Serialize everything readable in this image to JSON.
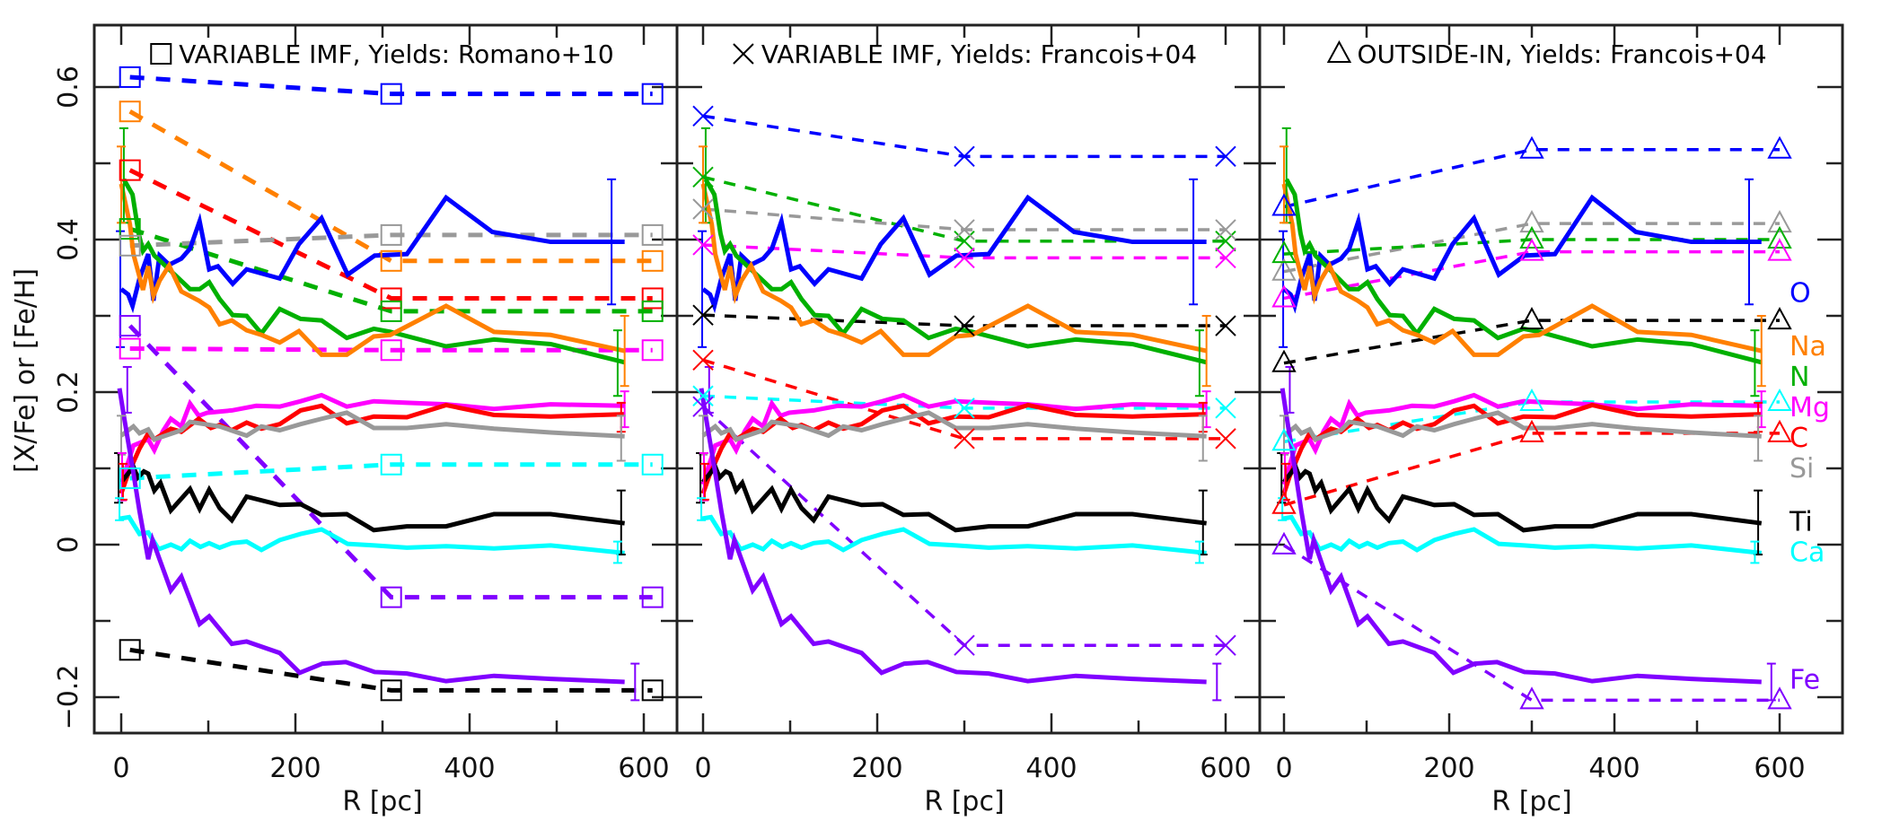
{
  "chart_data": {
    "type": "line",
    "ylabel": "[X/Fe] or [Fe/H]",
    "xlabel": "R [pc]",
    "xlim": [
      -30,
      640
    ],
    "ylim": [
      -0.22,
      0.68
    ],
    "xticks": [
      0,
      200,
      400,
      600
    ],
    "xminor_ticks": [
      100,
      300,
      500
    ],
    "yticks": [
      -0.2,
      0,
      0.2,
      0.4,
      0.6
    ],
    "ytick_labels": [
      "−0.2",
      "0",
      "0.2",
      "0.4",
      "0.6"
    ],
    "yminor_ticks": [
      -0.1,
      0.1,
      0.3,
      0.5
    ],
    "colors": {
      "O": "#0000ff",
      "Na": "#ff8000",
      "N": "#00b000",
      "Mg": "#ff00ff",
      "C": "#ff0000",
      "Si": "#999999",
      "Ti": "#000000",
      "Ca": "#00ffff",
      "Fe": "#8000ff"
    },
    "element_labels": [
      {
        "name": "O",
        "y": 0.33
      },
      {
        "name": "Na",
        "y": 0.26
      },
      {
        "name": "N",
        "y": 0.226
      },
      {
        "name": "Mg",
        "y": 0.185
      },
      {
        "name": "C",
        "y": 0.157
      },
      {
        "name": "Si",
        "y": 0.126
      },
      {
        "name": "Ti",
        "y": 0.03
      },
      {
        "name": "Ca",
        "y": -0.006
      },
      {
        "name": "Fe",
        "y": -0.177
      }
    ],
    "observed": [
      {
        "name": "O",
        "x": [
          0,
          8,
          13,
          21,
          31,
          37,
          44,
          55,
          69,
          79,
          90,
          101,
          111,
          128,
          144,
          182,
          204,
          230,
          260,
          291,
          328,
          373,
          426,
          493,
          578
        ],
        "y": [
          0.335,
          0.328,
          0.313,
          0.349,
          0.381,
          0.32,
          0.379,
          0.367,
          0.375,
          0.388,
          0.424,
          0.361,
          0.365,
          0.342,
          0.361,
          0.349,
          0.394,
          0.428,
          0.354,
          0.379,
          0.381,
          0.455,
          0.41,
          0.397,
          0.397
        ]
      },
      {
        "name": "N",
        "x": [
          3,
          13,
          20,
          25,
          31,
          38,
          55,
          79,
          90,
          101,
          113,
          128,
          144,
          161,
          182,
          206,
          230,
          259,
          290,
          309,
          373,
          428,
          493,
          578
        ],
        "y": [
          0.479,
          0.459,
          0.408,
          0.385,
          0.394,
          0.379,
          0.361,
          0.335,
          0.335,
          0.344,
          0.322,
          0.301,
          0.3,
          0.277,
          0.309,
          0.296,
          0.294,
          0.271,
          0.283,
          0.279,
          0.26,
          0.269,
          0.263,
          0.239
        ]
      },
      {
        "name": "Na",
        "x": [
          0,
          10,
          14,
          25,
          31,
          37,
          44,
          55,
          69,
          89,
          101,
          113,
          127,
          144,
          161,
          182,
          204,
          230,
          259,
          290,
          309,
          373,
          428,
          493,
          578
        ],
        "y": [
          0.473,
          0.42,
          0.381,
          0.334,
          0.365,
          0.326,
          0.346,
          0.366,
          0.332,
          0.32,
          0.311,
          0.289,
          0.294,
          0.281,
          0.275,
          0.265,
          0.28,
          0.249,
          0.249,
          0.273,
          0.275,
          0.313,
          0.279,
          0.275,
          0.254
        ]
      },
      {
        "name": "Mg",
        "x": [
          0,
          14,
          31,
          38,
          48,
          57,
          69,
          79,
          89,
          99,
          127,
          155,
          182,
          206,
          230,
          259,
          290,
          328,
          373,
          428,
          493,
          578
        ],
        "y": [
          0.079,
          0.13,
          0.138,
          0.124,
          0.149,
          0.165,
          0.155,
          0.185,
          0.169,
          0.173,
          0.176,
          0.182,
          0.181,
          0.188,
          0.196,
          0.181,
          0.188,
          0.186,
          0.184,
          0.178,
          0.184,
          0.182
        ]
      },
      {
        "name": "C",
        "x": [
          0,
          7,
          21,
          31,
          38,
          57,
          69,
          89,
          103,
          113,
          127,
          144,
          161,
          182,
          206,
          230,
          259,
          290,
          328,
          373,
          428,
          493,
          578
        ],
        "y": [
          0.067,
          0.09,
          0.126,
          0.146,
          0.138,
          0.152,
          0.148,
          0.165,
          0.153,
          0.157,
          0.15,
          0.16,
          0.152,
          0.158,
          0.176,
          0.182,
          0.159,
          0.168,
          0.167,
          0.183,
          0.17,
          0.168,
          0.171
        ]
      },
      {
        "name": "Si",
        "x": [
          0,
          14,
          21,
          31,
          38,
          69,
          79,
          113,
          144,
          161,
          182,
          206,
          230,
          259,
          290,
          328,
          373,
          428,
          493,
          578
        ],
        "y": [
          0.143,
          0.155,
          0.146,
          0.151,
          0.138,
          0.15,
          0.161,
          0.155,
          0.143,
          0.155,
          0.15,
          0.158,
          0.165,
          0.173,
          0.153,
          0.153,
          0.158,
          0.152,
          0.147,
          0.142
        ]
      },
      {
        "name": "Ti",
        "x": [
          0,
          14,
          19,
          26,
          31,
          38,
          45,
          57,
          79,
          90,
          101,
          113,
          127,
          144,
          182,
          206,
          230,
          259,
          290,
          328,
          373,
          428,
          493,
          578
        ],
        "y": [
          0.082,
          0.102,
          0.088,
          0.096,
          0.093,
          0.071,
          0.081,
          0.045,
          0.073,
          0.047,
          0.072,
          0.048,
          0.032,
          0.063,
          0.052,
          0.053,
          0.039,
          0.04,
          0.019,
          0.024,
          0.024,
          0.04,
          0.04,
          0.028
        ]
      },
      {
        "name": "Ca",
        "x": [
          -2,
          9,
          21,
          31,
          43,
          57,
          69,
          79,
          91,
          101,
          113,
          127,
          144,
          161,
          182,
          206,
          230,
          260,
          291,
          328,
          373,
          428,
          493,
          578
        ],
        "y": [
          0.034,
          0.036,
          0.014,
          0.016,
          -0.006,
          0.0,
          -0.006,
          0.005,
          -0.003,
          0.002,
          -0.004,
          0.002,
          0.004,
          -0.007,
          0.006,
          0.014,
          0.02,
          0.001,
          -0.001,
          -0.004,
          -0.002,
          -0.005,
          -0.001,
          -0.011
        ]
      },
      {
        "name": "Fe",
        "x": [
          -2,
          3,
          14,
          21,
          31,
          36,
          57,
          69,
          90,
          101,
          127,
          144,
          182,
          205,
          231,
          258,
          291,
          328,
          373,
          428,
          493,
          578
        ],
        "y": [
          0.205,
          0.169,
          0.094,
          0.044,
          -0.019,
          0.006,
          -0.06,
          -0.042,
          -0.104,
          -0.094,
          -0.13,
          -0.127,
          -0.142,
          -0.168,
          -0.156,
          -0.154,
          -0.167,
          -0.169,
          -0.179,
          -0.172,
          -0.176,
          -0.18
        ]
      }
    ],
    "errorbars": [
      {
        "name": "N",
        "x": 3,
        "lo": 0.422,
        "hi": 0.546
      },
      {
        "name": "Na",
        "x": 0,
        "lo": 0.422,
        "hi": 0.522
      },
      {
        "name": "O",
        "x": -1,
        "lo": 0.259,
        "hi": 0.411
      },
      {
        "name": "Fe",
        "x": 7,
        "lo": 0.173,
        "hi": 0.233
      },
      {
        "name": "Si",
        "x": 0,
        "lo": 0.118,
        "hi": 0.169
      },
      {
        "name": "Ti",
        "x": -3,
        "lo": 0.055,
        "hi": 0.12
      },
      {
        "name": "Mg",
        "x": 1,
        "lo": 0.058,
        "hi": 0.12
      },
      {
        "name": "C",
        "x": 2,
        "lo": 0.059,
        "hi": 0.106
      },
      {
        "name": "Ca",
        "x": -2,
        "lo": 0.032,
        "hi": 0.061
      },
      {
        "name": "O",
        "x": 563,
        "lo": 0.315,
        "hi": 0.479
      },
      {
        "name": "N",
        "x": 570,
        "lo": 0.195,
        "hi": 0.281
      },
      {
        "name": "Na",
        "x": 578,
        "lo": 0.208,
        "hi": 0.3
      },
      {
        "name": "Mg",
        "x": 578,
        "lo": 0.154,
        "hi": 0.201
      },
      {
        "name": "C",
        "x": 574,
        "lo": 0.148,
        "hi": 0.186
      },
      {
        "name": "Si",
        "x": 574,
        "lo": 0.11,
        "hi": 0.169
      },
      {
        "name": "Ti",
        "x": 574,
        "lo": -0.013,
        "hi": 0.071
      },
      {
        "name": "Ca",
        "x": 570,
        "lo": -0.024,
        "hi": 0.004
      },
      {
        "name": "Fe",
        "x": 590,
        "lo": -0.204,
        "hi": -0.156
      }
    ],
    "panels": [
      {
        "title": "VARIABLE IMF, Yields: Romano+10",
        "marker": "square",
        "models": [
          {
            "name": "O",
            "x": [
              10,
              310,
              610
            ],
            "y": [
              0.613,
              0.591,
              0.591
            ]
          },
          {
            "name": "Na",
            "x": [
              10,
              310,
              610
            ],
            "y": [
              0.568,
              0.372,
              0.372
            ]
          },
          {
            "name": "C",
            "x": [
              10,
              310,
              610
            ],
            "y": [
              0.491,
              0.323,
              0.323
            ]
          },
          {
            "name": "N",
            "x": [
              10,
              310,
              610
            ],
            "y": [
              0.414,
              0.306,
              0.306
            ]
          },
          {
            "name": "Si",
            "x": [
              10,
              310,
              610
            ],
            "y": [
              0.392,
              0.406,
              0.406
            ]
          },
          {
            "name": "Fe",
            "x": [
              10,
              310,
              610
            ],
            "y": [
              0.287,
              -0.069,
              -0.069
            ]
          },
          {
            "name": "Mg",
            "x": [
              10,
              310,
              610
            ],
            "y": [
              0.257,
              0.255,
              0.255
            ]
          },
          {
            "name": "Ca",
            "x": [
              10,
              310,
              610
            ],
            "y": [
              0.087,
              0.105,
              0.105
            ]
          },
          {
            "name": "Ti",
            "x": [
              10,
              310,
              610
            ],
            "y": [
              -0.138,
              -0.191,
              -0.191
            ]
          }
        ]
      },
      {
        "title": "VARIABLE IMF, Yields: Francois+04",
        "marker": "cross",
        "models": [
          {
            "name": "O",
            "x": [
              0,
              300,
              600
            ],
            "y": [
              0.562,
              0.509,
              0.509
            ]
          },
          {
            "name": "N",
            "x": [
              0,
              300,
              600
            ],
            "y": [
              0.482,
              0.398,
              0.398
            ]
          },
          {
            "name": "Si",
            "x": [
              0,
              300,
              600
            ],
            "y": [
              0.44,
              0.413,
              0.413
            ]
          },
          {
            "name": "Mg",
            "x": [
              0,
              300,
              600
            ],
            "y": [
              0.393,
              0.376,
              0.376
            ]
          },
          {
            "name": "Ti",
            "x": [
              0,
              300,
              600
            ],
            "y": [
              0.301,
              0.287,
              0.287
            ]
          },
          {
            "name": "C",
            "x": [
              0,
              300,
              600
            ],
            "y": [
              0.242,
              0.139,
              0.139
            ]
          },
          {
            "name": "Ca",
            "x": [
              0,
              300,
              600
            ],
            "y": [
              0.195,
              0.179,
              0.179
            ]
          },
          {
            "name": "Fe",
            "x": [
              0,
              300,
              600
            ],
            "y": [
              0.181,
              -0.132,
              -0.132
            ]
          }
        ]
      },
      {
        "title": "OUTSIDE-IN, Yields: Francois+04",
        "marker": "triangle",
        "models": [
          {
            "name": "O",
            "x": [
              0,
              300,
              600
            ],
            "y": [
              0.443,
              0.518,
              0.518
            ]
          },
          {
            "name": "Si",
            "x": [
              0,
              300,
              600
            ],
            "y": [
              0.358,
              0.421,
              0.421
            ]
          },
          {
            "name": "N",
            "x": [
              0,
              300,
              600
            ],
            "y": [
              0.381,
              0.4,
              0.4
            ]
          },
          {
            "name": "Mg",
            "x": [
              0,
              300,
              600
            ],
            "y": [
              0.323,
              0.384,
              0.384
            ]
          },
          {
            "name": "Ti",
            "x": [
              0,
              300,
              600
            ],
            "y": [
              0.238,
              0.294,
              0.294
            ]
          },
          {
            "name": "Ca",
            "x": [
              0,
              300,
              600
            ],
            "y": [
              0.135,
              0.187,
              0.187
            ]
          },
          {
            "name": "C",
            "x": [
              0,
              300,
              600
            ],
            "y": [
              0.052,
              0.146,
              0.146
            ]
          },
          {
            "name": "Fe",
            "x": [
              0,
              300,
              600
            ],
            "y": [
              -0.001,
              -0.204,
              -0.204
            ]
          }
        ]
      }
    ]
  }
}
